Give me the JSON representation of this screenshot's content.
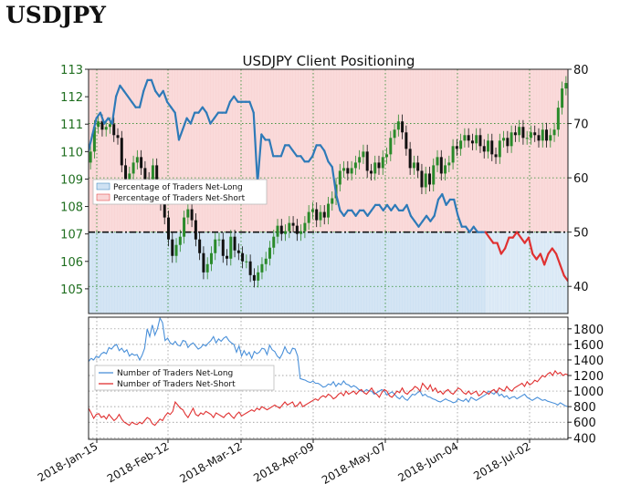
{
  "heading": "USDJPY",
  "chart_data": [
    {
      "type": "candlestick+line",
      "title": "USDJPY Client Positioning",
      "left_axis": {
        "ticks": [
          105,
          106,
          107,
          108,
          109,
          110,
          111,
          112,
          113
        ],
        "ylim": [
          104.1,
          113
        ]
      },
      "right_axis": {
        "ticks": [
          40,
          50,
          60,
          70,
          80
        ],
        "ylim": [
          35,
          80
        ]
      },
      "x_ticks": [
        "2018-Jan-15",
        "2018-Feb-12",
        "2018-Mar-12",
        "2018-Apr-09",
        "2018-May-07",
        "2018-Jun-04",
        "2018-Jul-02"
      ],
      "reference_line": 50,
      "legend": [
        "Percentage of Traders Net-Long",
        "Percentage of Traders Net-Short"
      ],
      "legend_position": "left",
      "colors": {
        "net_long": "#2e7ab8",
        "net_short": "#e03131",
        "long_fill": "#cfe2f3",
        "short_fill": "#f9d6d6",
        "candle_up": "#2a8a2a",
        "candle_down": "#111111"
      },
      "series": [
        {
          "name": "Percentage of Traders Net-Long",
          "values": [
            65,
            68,
            71,
            72,
            70,
            71,
            70,
            75,
            77,
            76,
            75,
            74,
            73,
            73,
            76,
            78,
            78,
            76,
            75,
            76,
            74,
            73,
            72,
            67,
            69,
            71,
            70,
            72,
            72,
            73,
            72,
            70,
            71,
            72,
            72,
            72,
            74,
            75,
            74,
            74,
            74,
            74,
            72,
            59,
            68,
            67,
            67,
            64,
            64,
            64,
            66,
            66,
            65,
            64,
            64,
            63,
            63,
            64,
            66,
            66,
            65,
            63,
            62,
            57,
            54,
            53,
            54,
            54,
            53,
            54,
            54,
            53,
            54,
            55,
            55,
            54,
            55,
            54,
            55,
            54,
            54,
            55,
            53,
            52,
            51,
            52,
            53,
            52,
            53,
            56,
            57,
            55,
            56,
            56,
            53,
            51,
            51,
            50,
            51,
            50,
            50,
            50,
            49,
            48,
            48,
            46,
            47,
            49,
            49,
            50,
            49,
            48,
            49,
            46,
            45,
            46,
            44,
            46,
            47,
            46,
            44,
            42,
            41
          ]
        }
      ],
      "candles": {
        "close": [
          110.0,
          110.9,
          111.1,
          110.8,
          110.9,
          111.0,
          110.6,
          110.5,
          109.5,
          109.0,
          109.2,
          109.6,
          109.8,
          109.4,
          109.0,
          108.9,
          109.5,
          108.6,
          108.1,
          107.6,
          106.8,
          106.2,
          106.6,
          106.9,
          107.6,
          107.9,
          107.5,
          106.8,
          106.3,
          105.6,
          105.9,
          106.3,
          106.8,
          106.8,
          106.2,
          106.1,
          106.9,
          106.4,
          106.3,
          106.0,
          106.0,
          105.5,
          105.3,
          105.6,
          105.9,
          106.1,
          106.5,
          106.9,
          107.3,
          107.0,
          107.1,
          107.4,
          107.3,
          107.0,
          107.1,
          107.4,
          107.8,
          107.9,
          107.5,
          107.8,
          107.6,
          108.1,
          108.3,
          108.8,
          109.3,
          109.4,
          109.2,
          109.4,
          109.6,
          109.8,
          110.0,
          109.3,
          109.2,
          109.6,
          109.4,
          109.8,
          109.9,
          110.5,
          110.8,
          111.1,
          110.7,
          110.1,
          109.4,
          109.6,
          109.3,
          108.7,
          109.2,
          108.8,
          109.5,
          109.8,
          109.2,
          109.5,
          109.6,
          110.2,
          110.1,
          110.4,
          110.6,
          110.4,
          110.3,
          110.6,
          110.2,
          110.0,
          110.4,
          109.9,
          109.8,
          110.4,
          110.5,
          110.2,
          110.7,
          110.6,
          110.9,
          110.5,
          110.5,
          110.7,
          110.6,
          110.4,
          110.8,
          110.4,
          110.6,
          110.8,
          111.6,
          112.3,
          112.5
        ]
      }
    },
    {
      "type": "line",
      "right_axis": {
        "ticks": [
          400,
          600,
          800,
          1000,
          1200,
          1400,
          1600,
          1800
        ],
        "ylim": [
          380,
          1950
        ]
      },
      "legend": [
        "Number of Traders Net-Long",
        "Number of Traders Net-Short"
      ],
      "legend_position": "left",
      "series": [
        {
          "name": "Number of Traders Net-Long",
          "values": [
            1380,
            1420,
            1400,
            1450,
            1430,
            1480,
            1500,
            1480,
            1560,
            1540,
            1580,
            1600,
            1520,
            1550,
            1500,
            1530,
            1450,
            1480,
            1460,
            1470,
            1400,
            1460,
            1550,
            1800,
            1700,
            1850,
            1720,
            1800,
            1940,
            1880,
            1650,
            1680,
            1620,
            1600,
            1640,
            1590,
            1580,
            1650,
            1640,
            1560,
            1600,
            1620,
            1580,
            1540,
            1560,
            1600,
            1580,
            1620,
            1650,
            1700,
            1620,
            1670,
            1640,
            1680,
            1700,
            1650,
            1620,
            1600,
            1500,
            1580,
            1450,
            1520,
            1460,
            1500,
            1420,
            1510,
            1480,
            1500,
            1550,
            1540,
            1470,
            1590,
            1530,
            1510,
            1450,
            1420,
            1480,
            1570,
            1500,
            1480,
            1550,
            1540,
            1450,
            1160,
            1150,
            1140,
            1120,
            1110,
            1130,
            1100,
            1100,
            1080,
            1050,
            1060,
            1090,
            1080,
            1120,
            1060,
            1100,
            1080,
            1130,
            1090,
            1080,
            1050,
            1070,
            1050,
            1020,
            1000,
            990,
            1020,
            1000,
            1000,
            960,
            980,
            1000,
            1020,
            1000,
            950,
            970,
            990,
            960,
            920,
            900,
            940,
            900,
            880,
            920,
            960,
            950,
            980,
            1000,
            940,
            960,
            930,
            920,
            900,
            890,
            870,
            860,
            880,
            900,
            880,
            870,
            850,
            860,
            900,
            880,
            870,
            900,
            860,
            920,
            900,
            880,
            900,
            920,
            940,
            960,
            1000,
            980,
            960,
            1000,
            940,
            960,
            920,
            940,
            900,
            920,
            930,
            900,
            920,
            940,
            960,
            920,
            900,
            880,
            900,
            920,
            900,
            880,
            890,
            870,
            860,
            850,
            840,
            820,
            850,
            830,
            810,
            800
          ]
        },
        {
          "name": "Number of Traders Net-Short",
          "values": [
            780,
            720,
            650,
            700,
            710,
            660,
            680,
            640,
            700,
            660,
            620,
            650,
            700,
            640,
            600,
            580,
            560,
            600,
            580,
            570,
            600,
            580,
            620,
            660,
            640,
            580,
            560,
            600,
            640,
            620,
            680,
            720,
            700,
            740,
            860,
            820,
            780,
            760,
            700,
            660,
            720,
            780,
            700,
            680,
            720,
            700,
            740,
            720,
            700,
            660,
            720,
            700,
            680,
            660,
            700,
            720,
            680,
            650,
            700,
            730,
            680,
            700,
            720,
            740,
            760,
            740,
            780,
            760,
            800,
            780,
            760,
            780,
            800,
            820,
            800,
            780,
            820,
            860,
            820,
            840,
            860,
            800,
            820,
            860,
            800,
            820,
            840,
            860,
            880,
            900,
            880,
            920,
            940,
            920,
            960,
            940,
            900,
            920,
            960,
            980,
            940,
            1000,
            960,
            980,
            1000,
            960,
            1000,
            1020,
            980,
            960,
            1000,
            1040,
            980,
            960,
            920,
            980,
            1020,
            1000,
            940,
            920,
            960,
            1000,
            980,
            1040,
            980,
            960,
            1000,
            1020,
            1060,
            1040,
            1000,
            1100,
            1060,
            1020,
            1080,
            1000,
            1040,
            980,
            1000,
            960,
            1000,
            1020,
            980,
            960,
            1000,
            1040,
            1020,
            980,
            960,
            1000,
            960,
            980,
            1000,
            940,
            960,
            1000,
            980,
            960,
            1000,
            1020,
            980,
            1040,
            1020,
            1000,
            1060,
            1020,
            1000,
            1040,
            1060,
            1080,
            1100,
            1060,
            1120,
            1080,
            1100,
            1140,
            1120,
            1160,
            1200,
            1180,
            1220,
            1240,
            1200,
            1260,
            1220,
            1240,
            1200,
            1220,
            1210
          ]
        }
      ]
    }
  ]
}
